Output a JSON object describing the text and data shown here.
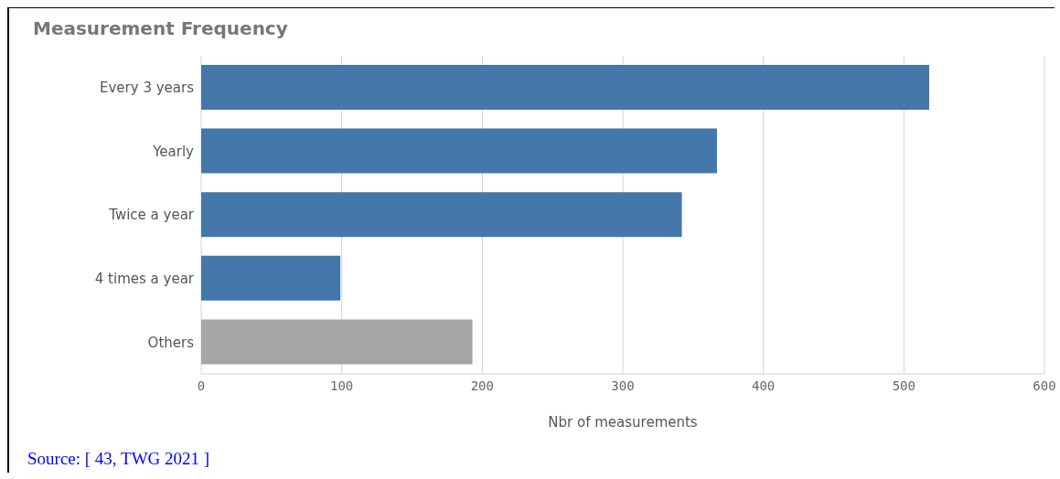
{
  "chart_data": {
    "type": "bar",
    "orientation": "horizontal",
    "title": "Measurement Frequency",
    "xlabel": "Nbr of measurements",
    "categories": [
      "Every 3 years",
      "Yearly",
      "Twice a year",
      "4 times a year",
      "Others"
    ],
    "values": [
      518,
      367,
      342,
      99,
      193
    ],
    "colors": [
      "#4477aa",
      "#4477aa",
      "#4477aa",
      "#4477aa",
      "#a6a6a6"
    ],
    "xlim": [
      0,
      600
    ],
    "xticks": [
      0,
      100,
      200,
      300,
      400,
      500,
      600
    ],
    "grid": "x",
    "annotations": [
      "Source: [ 43, TWG 2021 ]"
    ]
  }
}
